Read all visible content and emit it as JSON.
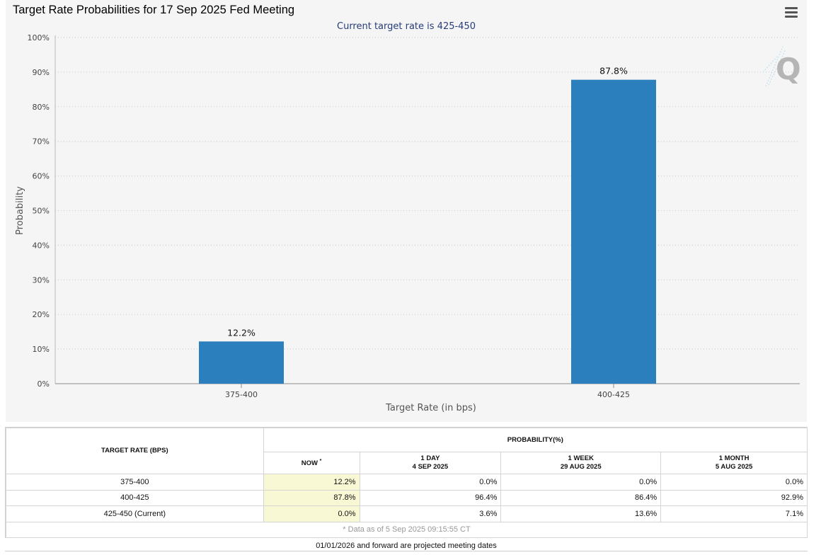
{
  "chart": {
    "title": "Target Rate Probabilities for 17 Sep 2025 Fed Meeting",
    "subtitle": "Current target rate is 425-450",
    "menu_icon": "hamburger-menu-icon",
    "logo_icon": "quikstrike-q-logo",
    "bar_color": "#2b7fbc",
    "subtitle_color": "#263c7a"
  },
  "chart_data": {
    "type": "bar",
    "title": "Target Rate Probabilities for 17 Sep 2025 Fed Meeting",
    "subtitle": "Current target rate is 425-450",
    "categories": [
      "375-400",
      "400-425"
    ],
    "values": [
      12.2,
      87.8
    ],
    "data_labels": [
      "12.2%",
      "87.8%"
    ],
    "xlabel": "Target Rate (in bps)",
    "ylabel": "Probability",
    "ylim": [
      0,
      100
    ],
    "yticks": [
      "0%",
      "10%",
      "20%",
      "30%",
      "40%",
      "50%",
      "60%",
      "70%",
      "80%",
      "90%",
      "100%"
    ],
    "grid": true,
    "legend": "none"
  },
  "table": {
    "headers": {
      "target_rate": "TARGET RATE (BPS)",
      "probability": "PROBABILITY(%)",
      "now": "NOW",
      "now_mark": "*",
      "day_label": "1 DAY",
      "day_date": "4 SEP 2025",
      "week_label": "1 WEEK",
      "week_date": "29 AUG 2025",
      "month_label": "1 MONTH",
      "month_date": "5 AUG 2025"
    },
    "rows": [
      {
        "rate": "375-400",
        "now": "12.2%",
        "day": "0.0%",
        "week": "0.0%",
        "month": "0.0%"
      },
      {
        "rate": "400-425",
        "now": "87.8%",
        "day": "96.4%",
        "week": "86.4%",
        "month": "92.9%"
      },
      {
        "rate": "425-450 (Current)",
        "now": "0.0%",
        "day": "3.6%",
        "week": "13.6%",
        "month": "7.1%"
      }
    ],
    "data_note": "* Data as of 5 Sep 2025 09:15:55 CT"
  },
  "footer_note": "01/01/2026 and forward are projected meeting dates"
}
